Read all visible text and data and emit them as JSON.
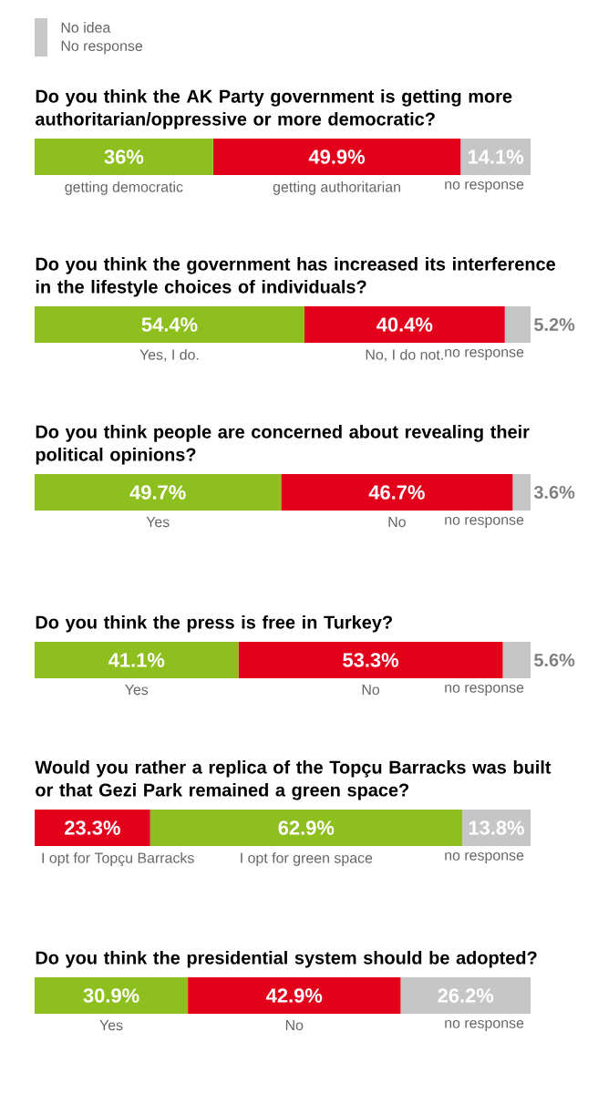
{
  "chart_data": [
    {
      "type": "bar",
      "orientation": "horizontal",
      "stacked": true,
      "tick_labels": false,
      "title": "Do you think the AK Party government is getting more authoritarian/oppressive or more democratic?",
      "annotations": [
        "No idea",
        "No response"
      ],
      "categories": [
        null
      ],
      "series": [
        {
          "name": "getting democratic",
          "color": "#8dc01e",
          "values": [
            36
          ],
          "value_labels": [
            "36%"
          ]
        },
        {
          "name": "getting authoritarian",
          "color": "#e2001a",
          "values": [
            49.9
          ],
          "value_labels": [
            "49.9%"
          ]
        },
        {
          "name": "no response",
          "color": "#c6c6c6",
          "values": [
            14.1
          ],
          "value_labels": [
            "14.1%"
          ]
        }
      ]
    },
    {
      "type": "bar",
      "orientation": "horizontal",
      "stacked": true,
      "tick_labels": false,
      "title": "Do you think the government has increased its interference in the lifestyle choices of individuals?",
      "categories": [
        null
      ],
      "series": [
        {
          "name": "Yes, I do.",
          "color": "#8dc01e",
          "values": [
            54.4
          ],
          "value_labels": [
            "54.4%"
          ]
        },
        {
          "name": "No, I do not.",
          "color": "#e2001a",
          "values": [
            40.4
          ],
          "value_labels": [
            "40.4%"
          ]
        },
        {
          "name": "no response",
          "color": "#c6c6c6",
          "values": [
            5.2
          ],
          "value_labels": [
            "5.2%"
          ]
        }
      ]
    },
    {
      "type": "bar",
      "orientation": "horizontal",
      "stacked": true,
      "tick_labels": false,
      "title": "Do you think people are concerned about revealing their political opinions?",
      "categories": [
        null
      ],
      "series": [
        {
          "name": "Yes",
          "color": "#8dc01e",
          "values": [
            49.7
          ],
          "value_labels": [
            "49.7%"
          ]
        },
        {
          "name": "No",
          "color": "#e2001a",
          "values": [
            46.7
          ],
          "value_labels": [
            "46.7%"
          ]
        },
        {
          "name": "no response",
          "color": "#c6c6c6",
          "values": [
            3.6
          ],
          "value_labels": [
            "3.6%"
          ]
        }
      ]
    },
    {
      "type": "bar",
      "orientation": "horizontal",
      "stacked": true,
      "tick_labels": false,
      "title": "Do you think the press is free in Turkey?",
      "categories": [
        null
      ],
      "series": [
        {
          "name": "Yes",
          "color": "#8dc01e",
          "values": [
            41.1
          ],
          "value_labels": [
            "41.1%"
          ]
        },
        {
          "name": "No",
          "color": "#e2001a",
          "values": [
            53.3
          ],
          "value_labels": [
            "53.3%"
          ]
        },
        {
          "name": "no response",
          "color": "#c6c6c6",
          "values": [
            5.6
          ],
          "value_labels": [
            "5.6%"
          ]
        }
      ]
    },
    {
      "type": "bar",
      "orientation": "horizontal",
      "stacked": true,
      "tick_labels": false,
      "title": "Would you rather a replica of the Topçu Barracks was built or that Gezi Park remained a green space?",
      "categories": [
        null
      ],
      "series": [
        {
          "name": "I opt for Topçu Barracks",
          "color": "#e2001a",
          "values": [
            23.3
          ],
          "value_labels": [
            "23.3%"
          ]
        },
        {
          "name": "I opt for green space",
          "color": "#8dc01e",
          "values": [
            62.9
          ],
          "value_labels": [
            "62.9%"
          ]
        },
        {
          "name": "no response",
          "color": "#c6c6c6",
          "values": [
            13.8
          ],
          "value_labels": [
            "13.8%"
          ]
        }
      ]
    },
    {
      "type": "bar",
      "orientation": "horizontal",
      "stacked": true,
      "tick_labels": false,
      "title": "Do you think the presidential system should be adopted?",
      "categories": [
        null
      ],
      "series": [
        {
          "name": "Yes",
          "color": "#8dc01e",
          "values": [
            30.9
          ],
          "value_labels": [
            "30.9%"
          ]
        },
        {
          "name": "No",
          "color": "#e2001a",
          "values": [
            42.9
          ],
          "value_labels": [
            "42.9%"
          ]
        },
        {
          "name": "no response",
          "color": "#c6c6c6",
          "values": [
            26.2
          ],
          "value_labels": [
            "26.2%"
          ]
        }
      ]
    }
  ]
}
